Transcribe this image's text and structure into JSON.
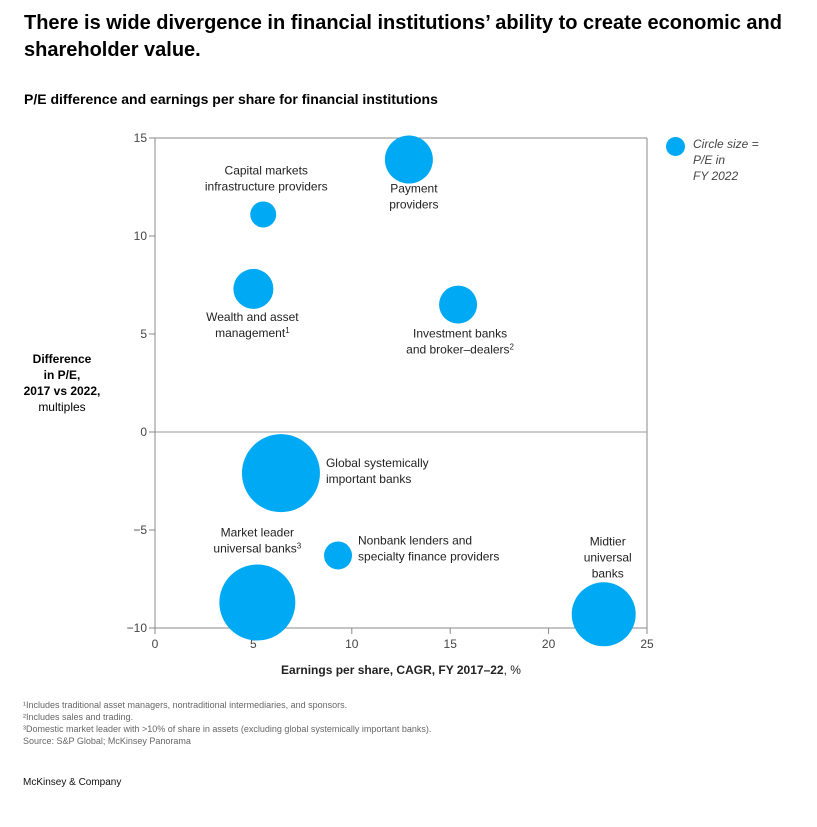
{
  "header": {
    "title": "There is wide divergence in financial institutions’ ability to create economic and shareholder value.",
    "subtitle": "P/E difference and earnings per share for financial institutions"
  },
  "legend": {
    "note_lines": [
      "Circle size =",
      "P/E in",
      "FY 2022"
    ]
  },
  "y_axis_label": {
    "bold_lines": [
      "Difference",
      "in P/E,",
      "2017 vs 2022,"
    ],
    "normal_line": "multiples"
  },
  "colors": {
    "bubble": "#00a9f4",
    "axis": "#888888",
    "zero_line": "#999999"
  },
  "chart_data": {
    "type": "scatter",
    "title": "P/E difference and earnings per share for financial institutions",
    "xlabel": "Earnings per share, CAGR, FY 2017–22, %",
    "ylabel": "Difference in P/E, 2017 vs 2022, multiples",
    "xlim": [
      0,
      25
    ],
    "ylim": [
      -10,
      15
    ],
    "xticks": [
      0,
      5,
      10,
      15,
      20,
      25
    ],
    "yticks": [
      -10,
      -5,
      0,
      5,
      10,
      15
    ],
    "xtick_labels": [
      "0",
      "5",
      "10",
      "15",
      "20",
      "25"
    ],
    "ytick_labels": [
      "−10",
      "−5",
      "0",
      "5",
      "10",
      "15"
    ],
    "size_meaning": "Circle size = P/E in FY 2022",
    "points": [
      {
        "name": "Capital markets infrastructure providers",
        "label_lines": [
          "Capital markets",
          "infrastructure providers"
        ],
        "sup": "",
        "x": 5.5,
        "y": 11.1,
        "size": 13
      },
      {
        "name": "Payment providers",
        "label_lines": [
          "Payment",
          "providers"
        ],
        "sup": "",
        "x": 12.9,
        "y": 13.9,
        "size": 24
      },
      {
        "name": "Wealth and asset management",
        "label_lines": [
          "Wealth and asset",
          "management"
        ],
        "sup": "1",
        "x": 5.0,
        "y": 7.3,
        "size": 20
      },
      {
        "name": "Investment banks and broker–dealers",
        "label_lines": [
          "Investment banks",
          "and broker–dealers"
        ],
        "sup": "2",
        "x": 15.4,
        "y": 6.5,
        "size": 19
      },
      {
        "name": "Global systemically important banks",
        "label_lines": [
          "Global systemically",
          "important banks"
        ],
        "sup": "",
        "x": 6.4,
        "y": -2.1,
        "size": 39
      },
      {
        "name": "Market leader universal banks",
        "label_lines": [
          "Market leader",
          "universal banks"
        ],
        "sup": "3",
        "x": 5.2,
        "y": -8.7,
        "size": 38
      },
      {
        "name": "Nonbank lenders and specialty finance providers",
        "label_lines": [
          "Nonbank lenders and",
          "specialty finance providers"
        ],
        "sup": "",
        "x": 9.3,
        "y": -6.3,
        "size": 14
      },
      {
        "name": "Midtier universal banks",
        "label_lines": [
          "Midtier",
          "universal",
          "banks"
        ],
        "sup": "",
        "x": 22.8,
        "y": -9.3,
        "size": 32
      }
    ]
  },
  "footnotes": [
    "¹Includes traditional asset managers, nontraditional intermediaries, and sponsors.",
    "²Includes sales and trading.",
    "³Domestic market leader with >10% of share in assets (excluding global systemically important banks).",
    " Source: S&P Global; McKinsey Panorama"
  ],
  "brand": "McKinsey & Company"
}
